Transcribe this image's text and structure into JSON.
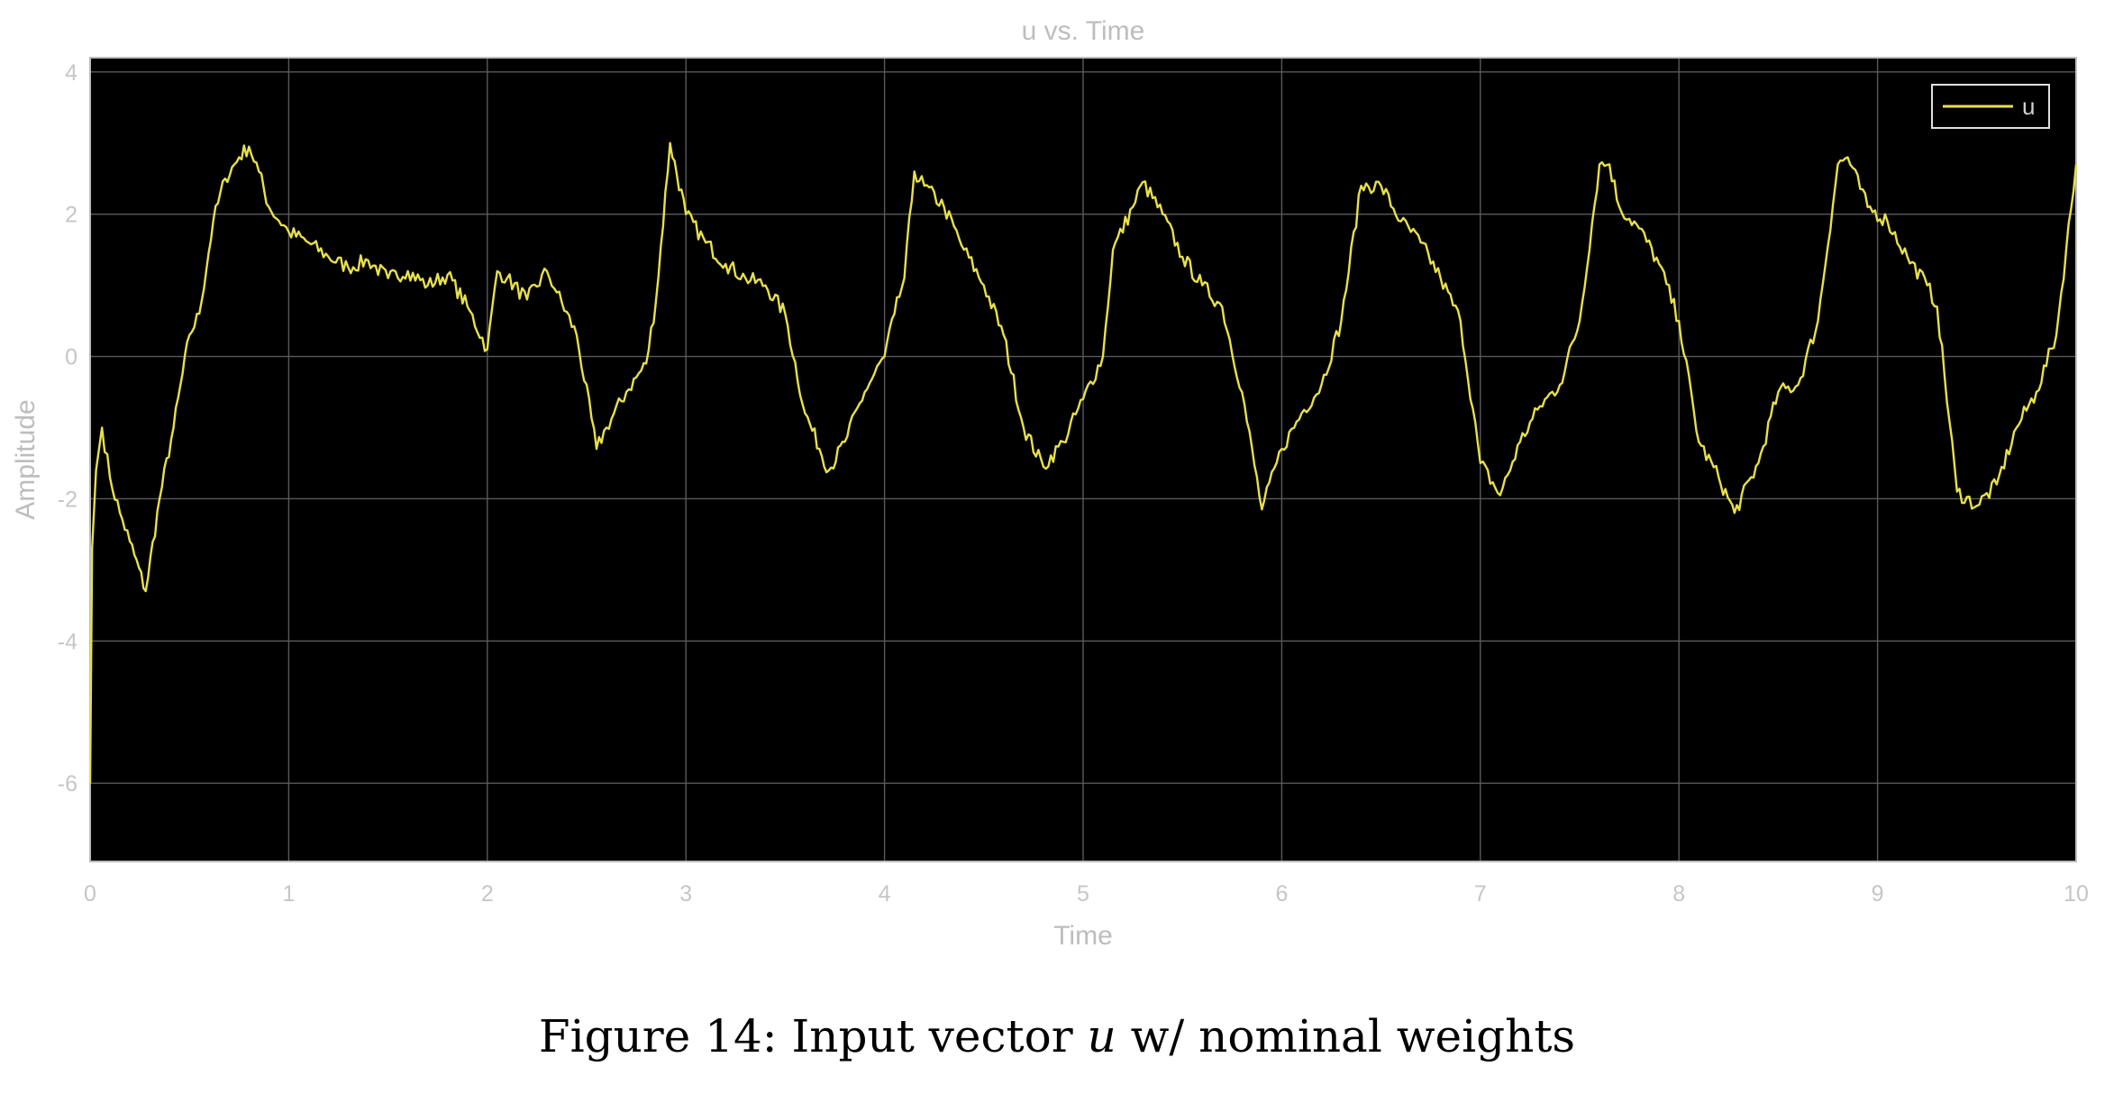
{
  "chart_data": {
    "type": "line",
    "title": "u vs. Time",
    "xlabel": "Time",
    "ylabel": "Amplitude",
    "xlim": [
      0,
      10
    ],
    "ylim": [
      -7.1,
      4.2
    ],
    "xticks": [
      0,
      1,
      2,
      3,
      4,
      5,
      6,
      7,
      8,
      9,
      10
    ],
    "yticks": [
      -6,
      -4,
      -2,
      0,
      2,
      4
    ],
    "grid": true,
    "legend_position": "top-right",
    "background": "#000000",
    "series": [
      {
        "name": "u",
        "color": "#e8e04a",
        "x": [
          0.0,
          0.01,
          0.03,
          0.06,
          0.1,
          0.15,
          0.2,
          0.28,
          0.35,
          0.42,
          0.5,
          0.55,
          0.62,
          0.68,
          0.75,
          0.8,
          0.85,
          0.9,
          1.0,
          1.1,
          1.2,
          1.3,
          1.4,
          1.5,
          1.6,
          1.7,
          1.8,
          1.9,
          2.0,
          2.05,
          2.1,
          2.2,
          2.3,
          2.35,
          2.45,
          2.55,
          2.6,
          2.7,
          2.8,
          2.85,
          2.92,
          3.0,
          3.1,
          3.2,
          3.3,
          3.4,
          3.5,
          3.6,
          3.72,
          3.8,
          3.9,
          4.0,
          4.05,
          4.1,
          4.15,
          4.2,
          4.3,
          4.4,
          4.5,
          4.6,
          4.7,
          4.8,
          4.9,
          5.0,
          5.1,
          5.15,
          5.25,
          5.3,
          5.4,
          5.5,
          5.6,
          5.7,
          5.8,
          5.9,
          6.0,
          6.1,
          6.2,
          6.3,
          6.4,
          6.5,
          6.6,
          6.7,
          6.8,
          6.9,
          7.0,
          7.1,
          7.2,
          7.3,
          7.4,
          7.5,
          7.6,
          7.65,
          7.7,
          7.8,
          7.9,
          8.0,
          8.1,
          8.2,
          8.28,
          8.4,
          8.5,
          8.6,
          8.7,
          8.8,
          8.85,
          8.95,
          9.05,
          9.15,
          9.25,
          9.3,
          9.4,
          9.5,
          9.6,
          9.7,
          9.8,
          9.9,
          10.0
        ],
        "y": [
          -6.0,
          -2.7,
          -1.6,
          -1.0,
          -1.7,
          -2.2,
          -2.6,
          -3.3,
          -2.0,
          -1.0,
          0.3,
          0.6,
          1.9,
          2.5,
          2.8,
          2.95,
          2.6,
          2.1,
          1.75,
          1.6,
          1.4,
          1.25,
          1.35,
          1.1,
          1.2,
          1.0,
          1.15,
          0.7,
          0.1,
          1.2,
          1.1,
          0.8,
          1.2,
          0.9,
          0.3,
          -1.3,
          -1.0,
          -0.5,
          -0.1,
          0.8,
          3.0,
          2.0,
          1.6,
          1.3,
          1.1,
          1.0,
          0.6,
          -0.8,
          -1.6,
          -1.2,
          -0.5,
          0.0,
          0.6,
          1.1,
          2.6,
          2.4,
          2.1,
          1.5,
          1.0,
          0.3,
          -1.0,
          -1.55,
          -1.2,
          -0.6,
          0.0,
          1.5,
          2.1,
          2.45,
          2.0,
          1.4,
          1.0,
          0.7,
          -0.5,
          -2.15,
          -1.3,
          -0.8,
          -0.4,
          0.5,
          2.4,
          2.4,
          1.9,
          1.6,
          1.1,
          0.5,
          -1.5,
          -1.95,
          -1.2,
          -0.7,
          -0.4,
          0.5,
          2.7,
          2.7,
          2.1,
          1.8,
          1.3,
          0.5,
          -1.2,
          -1.7,
          -2.2,
          -1.5,
          -0.5,
          -0.4,
          0.5,
          2.7,
          2.8,
          2.1,
          1.9,
          1.4,
          1.0,
          0.7,
          -1.9,
          -2.1,
          -1.8,
          -1.0,
          -0.5,
          0.3,
          2.7
        ]
      }
    ]
  },
  "caption": {
    "prefix": "Figure 14: Input vector ",
    "variable": "u",
    "suffix": " w/ nominal weights"
  }
}
